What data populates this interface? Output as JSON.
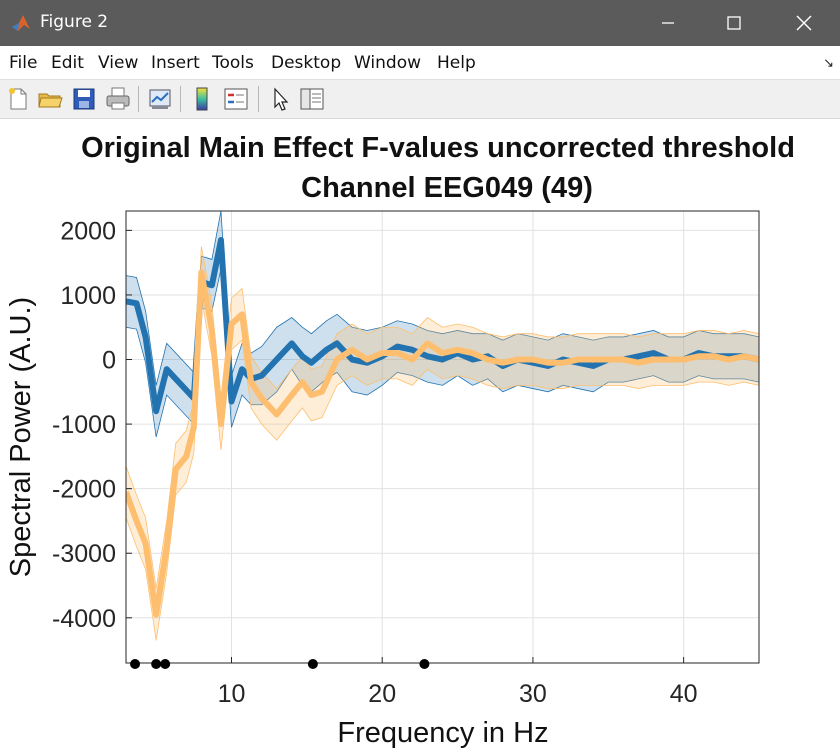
{
  "window": {
    "title": "Figure 2",
    "minimize_icon": "minimize-icon",
    "maximize_icon": "maximize-icon",
    "close_icon": "close-icon"
  },
  "menu": [
    "File",
    "Edit",
    "View",
    "Insert",
    "Tools",
    "Desktop",
    "Window",
    "Help"
  ],
  "toolbar": {
    "icons": [
      "new-figure-icon",
      "open-file-icon",
      "save-icon",
      "print-icon",
      "link-plot-icon",
      "insert-colorbar-icon",
      "insert-legend-icon",
      "edit-plot-arrow-icon",
      "property-inspector-icon"
    ]
  },
  "chart_data": {
    "type": "line",
    "title": [
      "Original Main Effect F-values uncorrected threshold",
      "Channel EEG049 (49)"
    ],
    "xlabel": "Frequency in Hz",
    "ylabel": "Spectral Power (A.U.)",
    "xlim": [
      3,
      45
    ],
    "ylim": [
      -4700,
      2300
    ],
    "xticks": [
      10,
      20,
      30,
      40
    ],
    "yticks": [
      2000,
      1000,
      0,
      -1000,
      -2000,
      -3000,
      -4000
    ],
    "grid": true,
    "colors": {
      "series1": "#2273b0",
      "series2": "#fdbf6f"
    },
    "series": [
      {
        "x": [
          3,
          3.7,
          4.3,
          5,
          5.7,
          7.5,
          8,
          8.7,
          9.3,
          10,
          10.7,
          11.3,
          12,
          13,
          14,
          14.7,
          15.3,
          16.3,
          17,
          18,
          19,
          20,
          21,
          22,
          23,
          24,
          25,
          26,
          27,
          28,
          29,
          30,
          31,
          32,
          33,
          34,
          35,
          36,
          37,
          38,
          39,
          40,
          41,
          42,
          43,
          44,
          45
        ],
        "values": [
          900,
          870,
          350,
          -800,
          -150,
          -600,
          1200,
          1150,
          1850,
          -650,
          -150,
          -300,
          -250,
          0,
          250,
          50,
          -50,
          150,
          250,
          0,
          -50,
          50,
          200,
          150,
          50,
          0,
          100,
          0,
          50,
          -100,
          0,
          -50,
          -100,
          0,
          -50,
          -100,
          0,
          0,
          50,
          100,
          0,
          0,
          100,
          50,
          50,
          50,
          0
        ],
        "band_upper": [
          1300,
          1270,
          750,
          -400,
          250,
          -200,
          1600,
          1550,
          2300,
          -250,
          250,
          100,
          200,
          500,
          650,
          500,
          400,
          600,
          700,
          500,
          450,
          500,
          600,
          550,
          450,
          400,
          450,
          400,
          400,
          300,
          400,
          350,
          300,
          400,
          350,
          300,
          350,
          350,
          400,
          450,
          350,
          350,
          450,
          400,
          400,
          400,
          350
        ],
        "band_lower": [
          500,
          470,
          -50,
          -1200,
          -550,
          -1000,
          800,
          750,
          1400,
          -1050,
          -550,
          -700,
          -700,
          -500,
          -150,
          -400,
          -500,
          -300,
          -200,
          -500,
          -550,
          -400,
          -200,
          -250,
          -350,
          -400,
          -250,
          -400,
          -300,
          -500,
          -400,
          -450,
          -500,
          -400,
          -450,
          -500,
          -350,
          -350,
          -300,
          -250,
          -350,
          -350,
          -250,
          -300,
          -300,
          -300,
          -350
        ]
      },
      {
        "x": [
          3,
          3.7,
          4.3,
          5,
          5.7,
          6.3,
          7,
          7.5,
          8,
          8.7,
          9.3,
          10,
          10.7,
          11.3,
          12,
          13,
          14,
          14.7,
          15.3,
          16,
          17,
          18,
          19,
          20,
          21,
          22,
          23,
          24,
          25,
          26,
          27,
          28,
          29,
          30,
          31,
          32,
          33,
          34,
          35,
          36,
          37,
          38,
          39,
          40,
          41,
          42,
          43,
          44,
          45
        ],
        "values": [
          -2050,
          -2500,
          -2850,
          -3950,
          -2900,
          -1700,
          -1500,
          -1050,
          1350,
          450,
          -1000,
          550,
          700,
          -350,
          -600,
          -850,
          -550,
          -350,
          -550,
          -500,
          0,
          150,
          0,
          100,
          100,
          0,
          250,
          100,
          150,
          100,
          0,
          -50,
          0,
          0,
          -50,
          -50,
          0,
          0,
          0,
          0,
          -50,
          0,
          0,
          0,
          50,
          50,
          0,
          50,
          0
        ],
        "band_upper": [
          -1650,
          -2100,
          -2450,
          -3550,
          -2500,
          -1300,
          -1100,
          -650,
          1750,
          850,
          -600,
          950,
          1100,
          50,
          -200,
          -450,
          -150,
          50,
          -150,
          -100,
          400,
          550,
          400,
          500,
          500,
          400,
          650,
          500,
          550,
          500,
          400,
          350,
          400,
          400,
          350,
          350,
          400,
          400,
          400,
          400,
          350,
          400,
          400,
          400,
          450,
          450,
          400,
          450,
          400
        ],
        "band_lower": [
          -2450,
          -2900,
          -3250,
          -4350,
          -3300,
          -2100,
          -1900,
          -1450,
          950,
          50,
          -1400,
          150,
          300,
          -750,
          -1000,
          -1250,
          -950,
          -750,
          -950,
          -900,
          -400,
          -250,
          -400,
          -300,
          -300,
          -400,
          -150,
          -300,
          -250,
          -300,
          -400,
          -450,
          -400,
          -400,
          -450,
          -450,
          -400,
          -400,
          -400,
          -400,
          -450,
          -400,
          -400,
          -400,
          -350,
          -350,
          -400,
          -350,
          -400
        ]
      }
    ],
    "markers_x": [
      3.6,
      5,
      5.6,
      15.4,
      22.8
    ]
  }
}
